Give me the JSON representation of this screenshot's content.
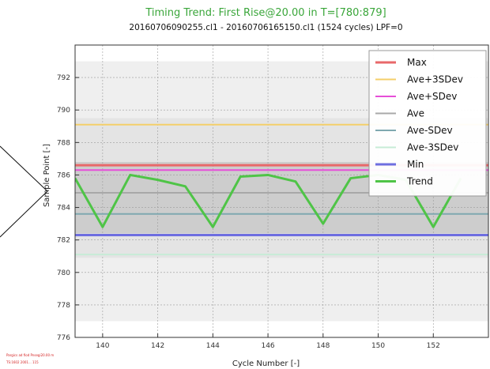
{
  "chart_data": {
    "type": "line",
    "title": "Timing Trend: First Rise@20.00 in T=[780:879]",
    "subtitle": "20160706090255.cl1 - 20160706165150.cl1 (1524 cycles) LPF=0",
    "xlabel": "Cycle Number [-]",
    "ylabel": "Sample Point [-]",
    "xlim": [
      139,
      154
    ],
    "ylim": [
      776,
      794
    ],
    "xticks": [
      140,
      142,
      144,
      146,
      148,
      150,
      152
    ],
    "yticks": [
      776,
      778,
      780,
      782,
      784,
      786,
      788,
      790,
      792
    ],
    "grid": true,
    "legend_position": "top-right",
    "bands": [
      {
        "from": 777.0,
        "to": 793.0,
        "color": "#efefef"
      },
      {
        "from": 780.9,
        "to": 789.5,
        "color": "#e4e4e4"
      },
      {
        "from": 782.4,
        "to": 786.8,
        "color": "#cdcdcd"
      }
    ],
    "series": [
      {
        "name": "Max",
        "kind": "hline",
        "y": 786.6,
        "color": "#e8686a",
        "width": 3
      },
      {
        "name": "Ave+3SDev",
        "kind": "hline",
        "y": 789.1,
        "color": "#f4cf6a",
        "width": 2
      },
      {
        "name": "Ave+SDev",
        "kind": "hline",
        "y": 786.3,
        "color": "#e64fd8",
        "width": 2
      },
      {
        "name": "Ave",
        "kind": "hline",
        "y": 784.9,
        "color": "#a8a8a8",
        "width": 2
      },
      {
        "name": "Ave-SDev",
        "kind": "hline",
        "y": 783.6,
        "color": "#7fa8b0",
        "width": 2
      },
      {
        "name": "Ave-3SDev",
        "kind": "hline",
        "y": 781.1,
        "color": "#c7ecd6",
        "width": 2
      },
      {
        "name": "Min",
        "kind": "hline",
        "y": 782.3,
        "color": "#6e6ee0",
        "width": 3
      },
      {
        "name": "Trend",
        "kind": "line",
        "color": "#4fc447",
        "width": 3,
        "x": [
          139,
          140,
          141,
          142,
          143,
          144,
          145,
          146,
          147,
          148,
          149,
          150,
          151,
          152,
          153
        ],
        "values": [
          785.8,
          782.8,
          786.0,
          785.7,
          785.3,
          782.8,
          785.9,
          786.0,
          785.6,
          783.0,
          785.8,
          786.0,
          785.7,
          782.8,
          785.8
        ]
      }
    ]
  },
  "footnote": {
    "line1": "Pargics ad fiod Pnsegi20.00 m",
    "line2": "TS:1602 2001... 115"
  }
}
